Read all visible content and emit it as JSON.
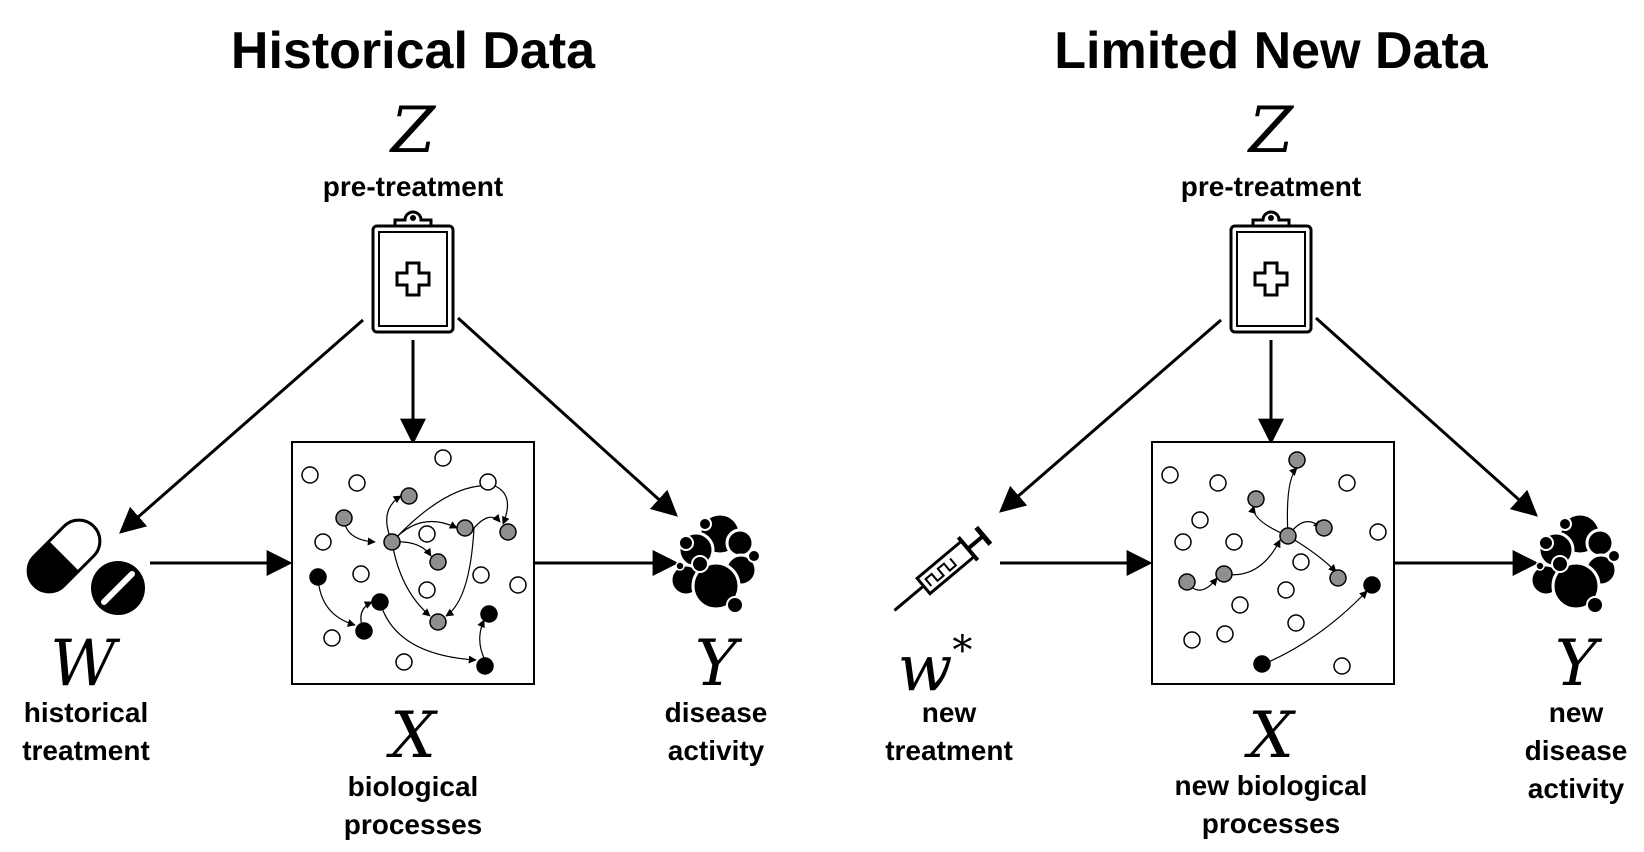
{
  "colors": {
    "ink": "#000000",
    "node_gray": "#8f8f8f",
    "node_white": "#ffffff",
    "background": "#ffffff"
  },
  "left_panel": {
    "title": "Historical Data",
    "z": {
      "symbol": "Z",
      "label": "pre-treatment",
      "icon": "clipboard-medical-icon"
    },
    "w": {
      "symbol": "W",
      "label_line1": "historical",
      "label_line2": "treatment",
      "icon": "pills-icon"
    },
    "x": {
      "symbol": "X",
      "label_line1": "biological",
      "label_line2": "processes"
    },
    "y": {
      "symbol": "Y",
      "label_line1": "disease",
      "label_line2": "activity",
      "icon": "cell-cluster-icon"
    }
  },
  "right_panel": {
    "title": "Limited New Data",
    "z": {
      "symbol": "Z",
      "label": "pre-treatment",
      "icon": "clipboard-medical-icon"
    },
    "w": {
      "symbol": "w",
      "superscript": "*",
      "label_line1": "new",
      "label_line2": "treatment",
      "icon": "syringe-icon"
    },
    "x": {
      "symbol": "X",
      "label_line1": "new biological",
      "label_line2": "processes"
    },
    "y": {
      "symbol": "Y",
      "label_line1": "new",
      "label_line2": "disease",
      "label_line3": "activity",
      "icon": "cell-cluster-icon"
    }
  }
}
